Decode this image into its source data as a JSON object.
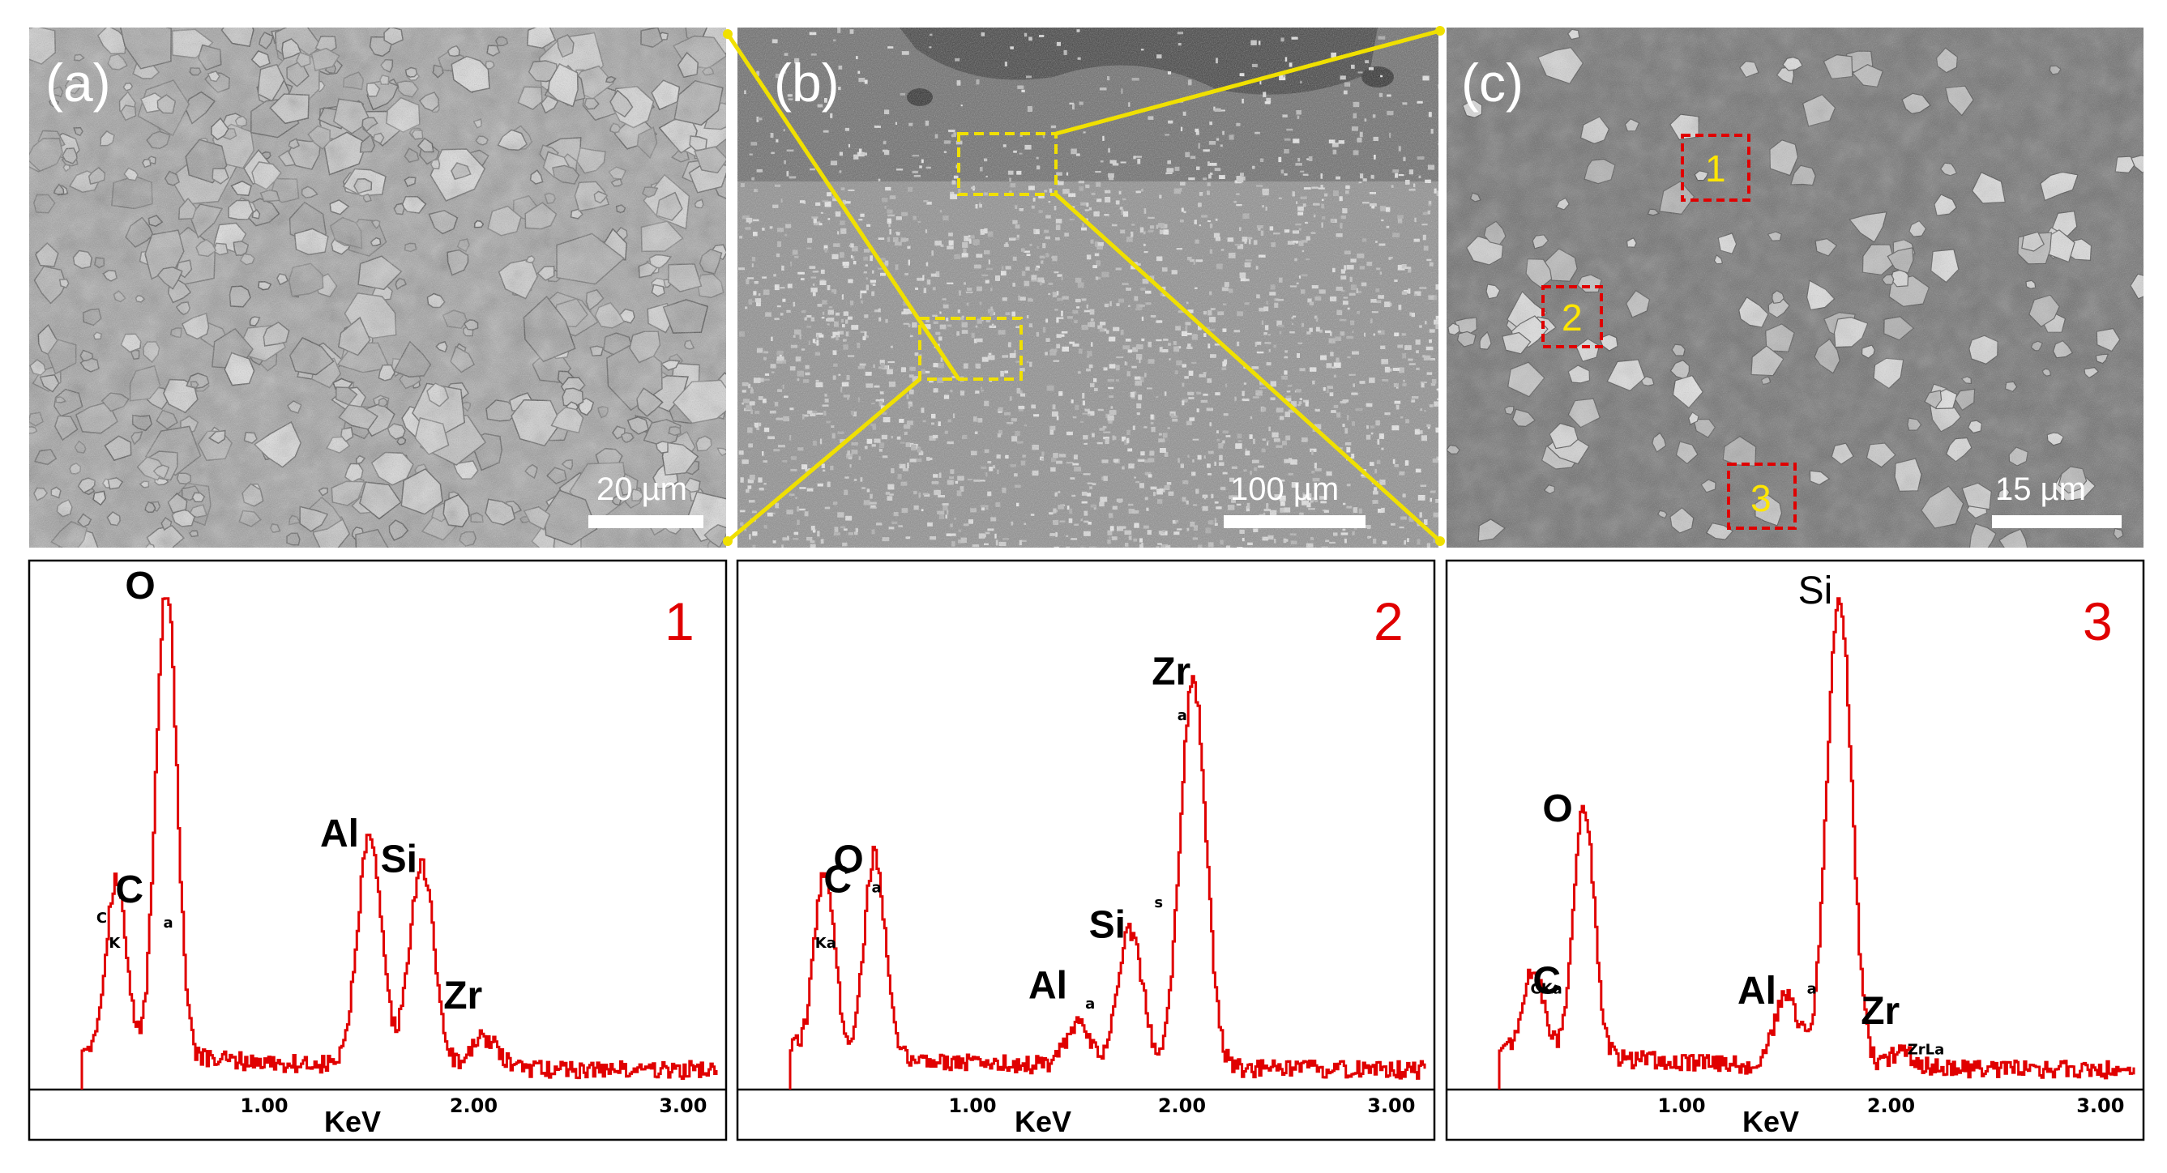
{
  "micrographs": [
    {
      "label": "(a)",
      "scale_bar": "20 µm"
    },
    {
      "label": "(b)",
      "scale_bar": "100 µm"
    },
    {
      "label": "(c)",
      "scale_bar": "15 µm",
      "boxes": [
        "1",
        "2",
        "3"
      ]
    }
  ],
  "colors": {
    "spectrum": "#e00000",
    "zoom_lines": "#f0e000",
    "region_box": "#e00000",
    "region_number": "#ffe600"
  },
  "chart_data": [
    {
      "type": "line",
      "panel_number": "1",
      "xlabel": "KeV",
      "x_ticks": [
        "1.00",
        "2.00",
        "3.00"
      ],
      "xlim": [
        0,
        3.15
      ],
      "ylim": [
        0,
        1
      ],
      "peaks": [
        {
          "element": "C",
          "energy": 0.28,
          "height": 0.34
        },
        {
          "element": "O",
          "energy": 0.52,
          "height": 0.94
        },
        {
          "element": "Al",
          "energy": 1.49,
          "height": 0.45
        },
        {
          "element": "Si",
          "energy": 1.74,
          "height": 0.4
        },
        {
          "element": "Zr",
          "energy": 2.04,
          "height": 0.06
        }
      ],
      "line_tags": [
        {
          "text": "C",
          "energy": 0.22,
          "height": 0.33
        },
        {
          "text": "K",
          "energy": 0.28,
          "height": 0.28
        },
        {
          "text": "a",
          "energy": 0.54,
          "height": 0.32
        }
      ]
    },
    {
      "type": "line",
      "panel_number": "2",
      "xlabel": "KeV",
      "x_ticks": [
        "1.00",
        "2.00",
        "3.00"
      ],
      "xlim": [
        0,
        3.15
      ],
      "ylim": [
        0,
        1
      ],
      "peaks": [
        {
          "element": "C",
          "energy": 0.28,
          "height": 0.36
        },
        {
          "element": "O",
          "energy": 0.52,
          "height": 0.4
        },
        {
          "element": "Al",
          "energy": 1.49,
          "height": 0.08
        },
        {
          "element": "Si",
          "energy": 1.74,
          "height": 0.27
        },
        {
          "element": "Zr",
          "energy": 2.04,
          "height": 0.77
        }
      ],
      "line_tags": [
        {
          "text": "Ka",
          "energy": 0.27,
          "height": 0.28
        },
        {
          "text": "a",
          "energy": 0.54,
          "height": 0.39
        },
        {
          "text": "a",
          "energy": 1.56,
          "height": 0.16
        },
        {
          "text": "s",
          "energy": 1.89,
          "height": 0.36
        },
        {
          "text": "a",
          "energy": 2.0,
          "height": 0.73
        }
      ]
    },
    {
      "type": "line",
      "panel_number": "3",
      "xlabel": "KeV",
      "x_ticks": [
        "1.00",
        "2.00",
        "3.00"
      ],
      "xlim": [
        0,
        3.15
      ],
      "ylim": [
        0,
        1
      ],
      "peaks": [
        {
          "element": "C",
          "energy": 0.28,
          "height": 0.16
        },
        {
          "element": "O",
          "energy": 0.52,
          "height": 0.5
        },
        {
          "element": "Al",
          "energy": 1.49,
          "height": 0.14
        },
        {
          "element": "Si",
          "energy": 1.74,
          "height": 0.93
        },
        {
          "element": "Zr",
          "energy": 2.04,
          "height": 0.03
        }
      ],
      "line_tags": [
        {
          "text": "CKa",
          "energy": 0.3,
          "height": 0.19
        },
        {
          "text": "a",
          "energy": 1.62,
          "height": 0.19
        },
        {
          "text": "ZrLa",
          "energy": 2.1,
          "height": 0.07
        }
      ]
    }
  ]
}
